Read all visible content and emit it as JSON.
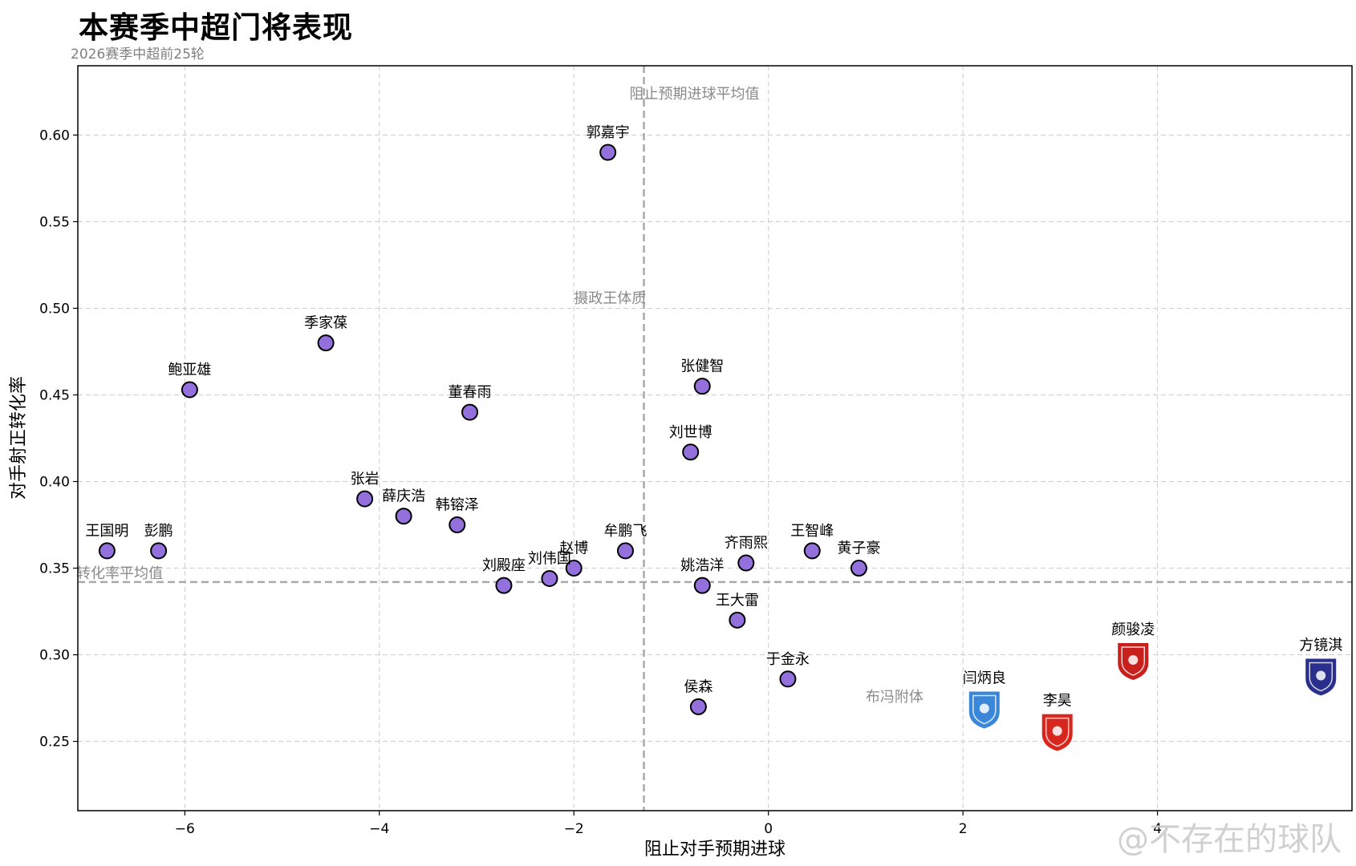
{
  "title": "本赛季中超门将表现",
  "subtitle": "2026赛季中超前25轮",
  "watermark": "@不存在的球队",
  "chart_data": {
    "type": "scatter",
    "xlabel": "阻止对手预期进球",
    "ylabel": "对手射正转化率",
    "xlim": [
      -7.1,
      6.0
    ],
    "ylim": [
      0.21,
      0.64
    ],
    "xticks": [
      -6,
      -4,
      -2,
      0,
      2,
      4
    ],
    "xtick_labels": [
      "−6",
      "−4",
      "−2",
      "0",
      "2",
      "4"
    ],
    "yticks": [
      0.25,
      0.3,
      0.35,
      0.4,
      0.45,
      0.5,
      0.55,
      0.6
    ],
    "ytick_labels": [
      "0.25",
      "0.30",
      "0.35",
      "0.40",
      "0.45",
      "0.50",
      "0.55",
      "0.60"
    ],
    "grid": true,
    "reference_lines": {
      "x_avg": {
        "value": -1.28,
        "label": "阻止预期进球平均值"
      },
      "y_avg": {
        "value": 0.342,
        "label": "转化率平均值"
      }
    },
    "quadrant_labels": [
      {
        "text": "摄政王体质",
        "x": -2.0,
        "y": 0.503
      },
      {
        "text": "布冯附体",
        "x": 1.0,
        "y": 0.273
      }
    ],
    "points": [
      {
        "name": "郭嘉宇",
        "x": -1.65,
        "y": 0.59,
        "marker": "dot"
      },
      {
        "name": "季家葆",
        "x": -4.55,
        "y": 0.48,
        "marker": "dot"
      },
      {
        "name": "鲍亚雄",
        "x": -5.95,
        "y": 0.453,
        "marker": "dot"
      },
      {
        "name": "董春雨",
        "x": -3.07,
        "y": 0.44,
        "marker": "dot"
      },
      {
        "name": "张健智",
        "x": -0.68,
        "y": 0.455,
        "marker": "dot"
      },
      {
        "name": "刘世博",
        "x": -0.8,
        "y": 0.417,
        "marker": "dot"
      },
      {
        "name": "张岩",
        "x": -4.15,
        "y": 0.39,
        "marker": "dot"
      },
      {
        "name": "薛庆浩",
        "x": -3.75,
        "y": 0.38,
        "marker": "dot"
      },
      {
        "name": "韩镕泽",
        "x": -3.2,
        "y": 0.375,
        "marker": "dot"
      },
      {
        "name": "王国明",
        "x": -6.8,
        "y": 0.36,
        "marker": "dot"
      },
      {
        "name": "彭鹏",
        "x": -6.27,
        "y": 0.36,
        "marker": "dot"
      },
      {
        "name": "牟鹏飞",
        "x": -1.47,
        "y": 0.36,
        "marker": "dot"
      },
      {
        "name": "赵博",
        "x": -2.0,
        "y": 0.35,
        "marker": "dot"
      },
      {
        "name": "刘伟国",
        "x": -2.25,
        "y": 0.344,
        "marker": "dot"
      },
      {
        "name": "刘殿座",
        "x": -2.72,
        "y": 0.34,
        "marker": "dot"
      },
      {
        "name": "齐雨熙",
        "x": -0.23,
        "y": 0.353,
        "marker": "dot"
      },
      {
        "name": "王智峰",
        "x": 0.45,
        "y": 0.36,
        "marker": "dot"
      },
      {
        "name": "黄子豪",
        "x": 0.93,
        "y": 0.35,
        "marker": "dot"
      },
      {
        "name": "姚浩洋",
        "x": -0.68,
        "y": 0.34,
        "marker": "dot"
      },
      {
        "name": "王大雷",
        "x": -0.32,
        "y": 0.32,
        "marker": "dot"
      },
      {
        "name": "于金永",
        "x": 0.2,
        "y": 0.286,
        "marker": "dot"
      },
      {
        "name": "侯森",
        "x": -0.72,
        "y": 0.27,
        "marker": "dot"
      },
      {
        "name": "闫炳良",
        "x": 2.22,
        "y": 0.269,
        "marker": "badge",
        "color": "#3a87d9"
      },
      {
        "name": "李昊",
        "x": 2.97,
        "y": 0.256,
        "marker": "badge",
        "color": "#d8261d"
      },
      {
        "name": "颜骏凌",
        "x": 3.75,
        "y": 0.297,
        "marker": "badge",
        "color": "#c8201c"
      },
      {
        "name": "方镜淇",
        "x": 5.68,
        "y": 0.288,
        "marker": "badge",
        "color": "#2b2f8c"
      }
    ]
  }
}
